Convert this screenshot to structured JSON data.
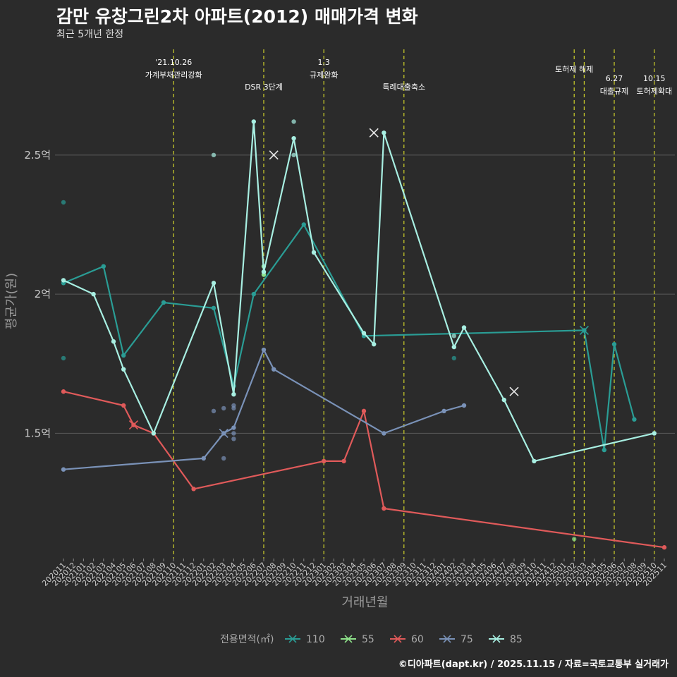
{
  "header": {
    "title": "감만 유창그린2차 아파트(2012) 매매가격 변화",
    "subtitle": "최근 5개년 한정"
  },
  "footer": {
    "credit": "©디아파트(dapt.kr) / 2025.11.15 / 자료=국토교통부 실거래가"
  },
  "chart_data": {
    "type": "line",
    "title": "감만 유창그린2차 아파트(2012) 매매가격 변화",
    "xlabel": "거래년월",
    "ylabel": "평균가(원)",
    "ylim": [
      1.05,
      2.9
    ],
    "yticks": [
      {
        "v": 1.5,
        "label": "1.5억"
      },
      {
        "v": 2.0,
        "label": "2억"
      },
      {
        "v": 2.5,
        "label": "2.5억"
      }
    ],
    "x_categories": [
      "202011",
      "202012",
      "202101",
      "202102",
      "202103",
      "202104",
      "202105",
      "202106",
      "202107",
      "202108",
      "202109",
      "202110",
      "202111",
      "202112",
      "202201",
      "202202",
      "202203",
      "202204",
      "202205",
      "202206",
      "202207",
      "202208",
      "202209",
      "202210",
      "202211",
      "202212",
      "202301",
      "202302",
      "202303",
      "202304",
      "202305",
      "202306",
      "202307",
      "202308",
      "202309",
      "202310",
      "202311",
      "202312",
      "202401",
      "202402",
      "202403",
      "202404",
      "202405",
      "202406",
      "202407",
      "202408",
      "202409",
      "202410",
      "202411",
      "202412",
      "202501",
      "202502",
      "202503",
      "202504",
      "202505",
      "202506",
      "202507",
      "202508",
      "202509",
      "202510",
      "202511"
    ],
    "events": [
      {
        "x": "202110",
        "line1": "'21.10.26",
        "line2": "가계부채관리강화",
        "level": 0
      },
      {
        "x": "202207",
        "line1": "DSR 3단계",
        "line2": "",
        "level": 1
      },
      {
        "x": "202301",
        "line1": "1.3",
        "line2": "규제완화",
        "level": 0
      },
      {
        "x": "202309",
        "line1": "특례대출축소",
        "line2": "",
        "level": 1
      },
      {
        "x": "202502",
        "line1": "토허제 해제",
        "line2": "",
        "level": 2
      },
      {
        "x": "202503",
        "line1": "",
        "line2": "",
        "level": 2
      },
      {
        "x": "202506",
        "line1": "6.27",
        "line2": "대출규제",
        "level": 3
      },
      {
        "x": "202510",
        "line1": "10.15",
        "line2": "토허제확대",
        "level": 3
      }
    ],
    "series": [
      {
        "name": "110",
        "color": "#2a9d95",
        "line": [
          [
            "202011",
            2.04
          ],
          [
            "202103",
            2.1
          ],
          [
            "202105",
            1.78
          ],
          [
            "202109",
            1.97
          ],
          [
            "202202",
            1.95
          ],
          [
            "202204",
            1.67
          ],
          [
            "202206",
            2.0
          ],
          [
            "202211",
            2.25
          ],
          [
            "202305",
            1.85
          ],
          [
            "202503",
            1.87
          ],
          [
            "202505",
            1.44
          ],
          [
            "202506",
            1.82
          ],
          [
            "202508",
            1.55
          ]
        ],
        "points": [
          [
            "202011",
            2.33
          ],
          [
            "202011",
            1.77
          ],
          [
            "202402",
            1.77
          ]
        ],
        "marks": [
          [
            "202503",
            1.87
          ]
        ]
      },
      {
        "name": "55",
        "color": "#8ee28a",
        "line": [
          [
            "202207",
            2.07
          ],
          [
            "202207",
            2.1
          ]
        ],
        "points": [
          [
            "202502",
            1.12
          ]
        ],
        "marks": []
      },
      {
        "name": "60",
        "color": "#e05a5a",
        "line": [
          [
            "202011",
            1.65
          ],
          [
            "202105",
            1.6
          ],
          [
            "202106",
            1.53
          ],
          [
            "202108",
            1.5
          ],
          [
            "202112",
            1.3
          ],
          [
            "202301",
            1.4
          ],
          [
            "202303",
            1.4
          ],
          [
            "202305",
            1.58
          ],
          [
            "202307",
            1.23
          ],
          [
            "202511",
            1.09
          ]
        ],
        "points": [],
        "marks": [
          [
            "202106",
            1.53
          ]
        ]
      },
      {
        "name": "75",
        "color": "#7a92b8",
        "line": [
          [
            "202011",
            1.37
          ],
          [
            "202201",
            1.41
          ],
          [
            "202203",
            1.5
          ],
          [
            "202204",
            1.52
          ],
          [
            "202207",
            1.8
          ],
          [
            "202208",
            1.73
          ],
          [
            "202307",
            1.5
          ],
          [
            "202401",
            1.58
          ],
          [
            "202403",
            1.6
          ]
        ],
        "points": [
          [
            "202202",
            1.58
          ],
          [
            "202203",
            1.59
          ],
          [
            "202203",
            1.41
          ],
          [
            "202204",
            1.6
          ],
          [
            "202204",
            1.59
          ],
          [
            "202204",
            1.5
          ],
          [
            "202204",
            1.48
          ]
        ],
        "marks": [
          [
            "202203",
            1.5
          ]
        ]
      },
      {
        "name": "85",
        "color": "#a8efe2",
        "line": [
          [
            "202011",
            2.05
          ],
          [
            "202102",
            2.0
          ],
          [
            "202104",
            1.83
          ],
          [
            "202105",
            1.73
          ],
          [
            "202108",
            1.5
          ],
          [
            "202202",
            2.04
          ],
          [
            "202204",
            1.64
          ],
          [
            "202206",
            2.62
          ],
          [
            "202207",
            2.08
          ],
          [
            "202210",
            2.56
          ],
          [
            "202212",
            2.15
          ],
          [
            "202305",
            1.86
          ],
          [
            "202306",
            1.82
          ],
          [
            "202307",
            2.58
          ],
          [
            "202402",
            1.81
          ],
          [
            "202403",
            1.88
          ],
          [
            "202407",
            1.62
          ],
          [
            "202410",
            1.4
          ],
          [
            "202510",
            1.5
          ]
        ],
        "points": [
          [
            "202202",
            2.5
          ],
          [
            "202210",
            2.62
          ],
          [
            "202210",
            2.5
          ],
          [
            "202402",
            1.85
          ]
        ],
        "marks": [
          [
            "202208",
            2.5
          ],
          [
            "202306",
            2.58
          ],
          [
            "202408",
            1.65
          ]
        ]
      }
    ],
    "legend": {
      "title": "전용면적(㎡)",
      "position": "bottom"
    }
  }
}
